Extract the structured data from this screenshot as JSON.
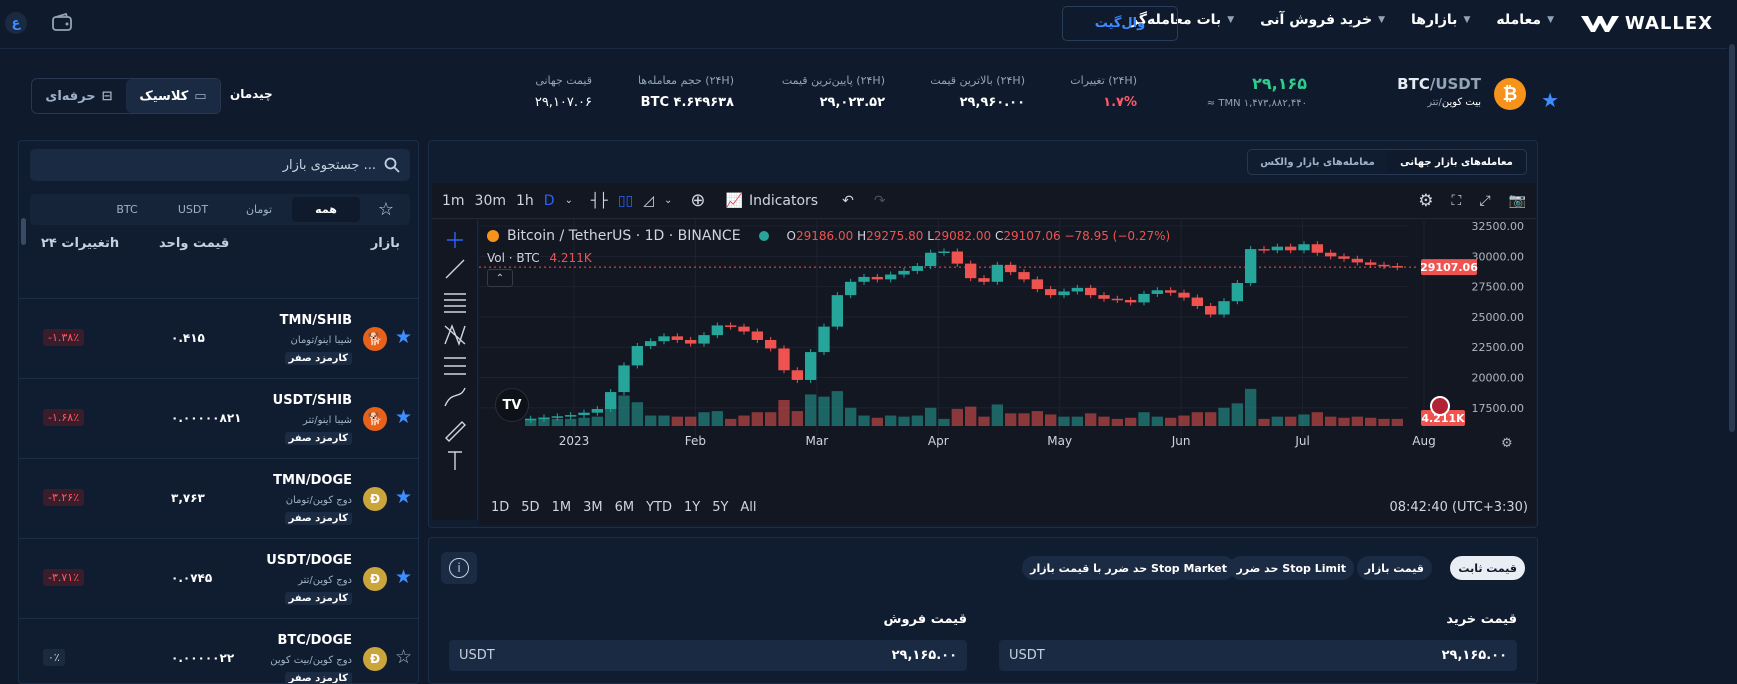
{
  "nav": {
    "logo": "WALLEX",
    "items": [
      "معامله",
      "بازارها",
      "خرید فروش آنی",
      "بات معامله‌گر"
    ],
    "wallet": "وال‌گیت",
    "badge": "ع"
  },
  "ticker": {
    "pair_base": "BTC",
    "pair_quote": "/USDT",
    "pair_name": "بیت کوین",
    "pair_name_quote": "/تتر",
    "price": "۲۹,۱۶۵",
    "price_tmn": "≈ TMN ۱,۴۷۳,۸۸۲,۴۴۰",
    "change_label": "تغییرات (۲۴H)",
    "change_value": "۱.۷%",
    "high_label": "بالاترین قیمت (۲۴H)",
    "high_value": "۲۹,۹۶۰.۰۰",
    "low_label": "پایین‌ترین قیمت (۲۴H)",
    "low_value": "۲۹,۰۲۳.۵۲",
    "volume_label": "حجم معامله‌ها (۲۴H)",
    "volume_value": "BTC ۴.۶۴۹۶۳۸",
    "global_label": "قیمت جهانی",
    "global_value": "۲۹,۱۰۷.۰۶",
    "colors": {
      "up": "#2ecc8f",
      "down": "#ff5a6a",
      "accent": "#3f8cff"
    }
  },
  "layout": {
    "label": "چیدمان",
    "classic": "کلاسیک",
    "pro": "حرفه‌ای"
  },
  "market": {
    "search_placeholder": "جستجوی بازار ...",
    "tabs": [
      "همه",
      "تومان",
      "USDT",
      "BTC"
    ],
    "col_market": "بازار",
    "col_price": "قیمت واحد",
    "col_change": "تغییرات ۲۴h",
    "rows": [
      {
        "pair": "TMN/SHIB",
        "sub": "شیبا اینو/تومان",
        "fee": "کارمزد صفر",
        "price": "۰.۴۱۵",
        "change": "-۱.۳۸٪",
        "icon": "shib-coin-icon",
        "fav": true
      },
      {
        "pair": "USDT/SHIB",
        "sub": "شیبا اینو/تتر",
        "fee": "کارمزد صفر",
        "price": "۰.۰۰۰۰۰۸۲۱",
        "change": "-۱.۶۸٪",
        "icon": "shib-coin-icon",
        "fav": true
      },
      {
        "pair": "TMN/DOGE",
        "sub": "دوج کوین/تومان",
        "fee": "کارمزد صفر",
        "price": "۳,۷۶۳",
        "change": "-۳.۲۶٪",
        "icon": "doge-coin-icon",
        "fav": true
      },
      {
        "pair": "USDT/DOGE",
        "sub": "دوج کوین/تتر",
        "fee": "کارمزد صفر",
        "price": "۰.۰۷۴۵",
        "change": "-۳.۷۱٪",
        "icon": "doge-coin-icon",
        "fav": true
      },
      {
        "pair": "BTC/DOGE",
        "sub": "دوج کوین/بیت کوین",
        "fee": "کارمزد صفر",
        "price": "۰.۰۰۰۰۰۲۲",
        "change": "۰٪",
        "icon": "doge-coin-icon",
        "fav": false
      }
    ]
  },
  "chart_tabs": {
    "global": "معامله‌های بازار جهانی",
    "wallex": "معامله‌های بازار والکس"
  },
  "tv": {
    "intervals": [
      "1m",
      "30m",
      "1h",
      "D"
    ],
    "indicators": "Indicators",
    "symbol_title": "Bitcoin / TetherUS · 1D · BINANCE",
    "ohlc_o": "29186.00",
    "ohlc_h": "29275.80",
    "ohlc_l": "29082.00",
    "ohlc_c": "29107.06",
    "ohlc_chg": "−78.95 (−0.27%)",
    "vol_label": "Vol · BTC",
    "vol_value": "4.211K",
    "last_price": "29107.06",
    "last_vol": "4.211K",
    "ranges": [
      "1D",
      "5D",
      "1M",
      "3M",
      "6M",
      "YTD",
      "1Y",
      "5Y",
      "All"
    ],
    "clock": "08:42:40 (UTC+3:30)",
    "colors": {
      "up": "#26a69a",
      "down": "#ef5350",
      "bg": "#131722"
    }
  },
  "chart_data": {
    "type": "candlestick",
    "x": [
      "2023",
      "Feb",
      "Mar",
      "Apr",
      "May",
      "Jun",
      "Jul",
      "Aug"
    ],
    "yticks": [
      32500,
      30000,
      27500,
      25000,
      22500,
      20000,
      17500
    ],
    "ylim": [
      16000,
      33000
    ],
    "series": [
      {
        "name": "BTC/USDT",
        "points": [
          16600,
          16700,
          16800,
          16900,
          17100,
          17400,
          18800,
          21000,
          22600,
          23000,
          23400,
          23100,
          22800,
          23500,
          24300,
          24200,
          23800,
          23100,
          22400,
          20600,
          19800,
          22100,
          24200,
          26800,
          27900,
          28300,
          28100,
          28500,
          28800,
          29200,
          30300,
          30400,
          29400,
          28200,
          27900,
          29300,
          28700,
          28100,
          27300,
          26800,
          27100,
          27400,
          26800,
          26500,
          26400,
          26200,
          26900,
          27200,
          27000,
          26600,
          25900,
          25200,
          26300,
          27800,
          30600,
          30500,
          30800,
          30500,
          31000,
          30300,
          30000,
          29800,
          29500,
          29300,
          29200,
          29100
        ]
      }
    ]
  },
  "order": {
    "types": [
      "قیمت ثابت",
      "قیمت بازار",
      "حد ضرر Stop Limit",
      "حد ضرر با قیمت بازار Stop Market"
    ],
    "buy_label": "قیمت خرید",
    "sell_label": "قیمت فروش",
    "currency": "USDT",
    "buy_value": "۲۹,۱۶۵.۰۰",
    "sell_value": "۲۹,۱۶۵.۰۰"
  }
}
